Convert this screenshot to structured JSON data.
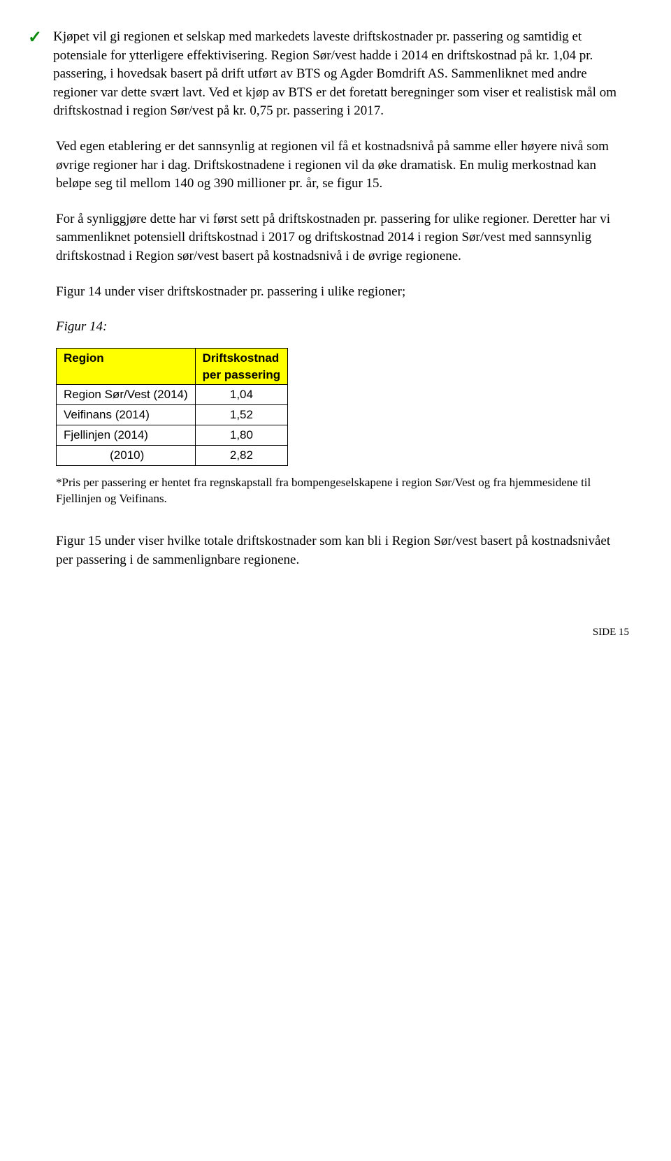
{
  "bullet": {
    "checkmark": "✓",
    "text": "Kjøpet vil gi regionen et selskap med markedets laveste driftskostnader pr. passering og samtidig et potensiale for ytterligere effektivisering. Region Sør/vest hadde i 2014 en driftskostnad på kr. 1,04 pr. passering, i hovedsak basert på drift utført av BTS og Agder Bomdrift AS. Sammenliknet med andre regioner var dette svært lavt. Ved et kjøp av BTS er det foretatt beregninger som viser et realistisk mål om driftskostnad i region Sør/vest på kr. 0,75 pr. passering i 2017."
  },
  "para2": "Ved egen etablering er det sannsynlig at regionen vil få et kostnadsnivå på samme eller høyere nivå som øvrige regioner har i dag. Driftskostnadene i regionen vil da øke dramatisk. En mulig merkostnad kan beløpe seg til mellom 140 og 390 millioner pr. år, se figur 15.",
  "para3": "For å synliggjøre dette har vi først sett på driftskostnaden pr. passering for ulike regioner. Deretter har vi sammenliknet potensiell driftskostnad i 2017 og driftskostnad 2014 i region Sør/vest med sannsynlig driftskostnad i Region sør/vest basert på kostnadsnivå i de øvrige regionene.",
  "para4": "Figur 14 under viser driftskostnader pr. passering i ulike regioner;",
  "fig_label": "Figur 14:",
  "table": {
    "header_col1": "Region",
    "header_col2_line1": "Driftskostnad",
    "header_col2_line2": "per passering",
    "rows": [
      {
        "region": "Region Sør/Vest (2014)",
        "value": "1,04"
      },
      {
        "region": "Veifinans (2014)",
        "value": "1,52"
      },
      {
        "region": "Fjellinjen (2014)",
        "value": "1,80"
      },
      {
        "region": "              (2010)",
        "value": "2,82"
      }
    ],
    "header_bg": "#ffff00",
    "border_color": "#000000"
  },
  "footnote": "*Pris per passering er hentet fra regnskapstall fra bompengeselskapene i region Sør/Vest og fra hjemmesidene til Fjellinjen og Veifinans.",
  "para5": "Figur 15 under viser hvilke totale driftskostnader som kan bli i Region Sør/vest basert på kostnadsnivået per passering i de sammenlignbare regionene.",
  "page_number": "SIDE 15"
}
